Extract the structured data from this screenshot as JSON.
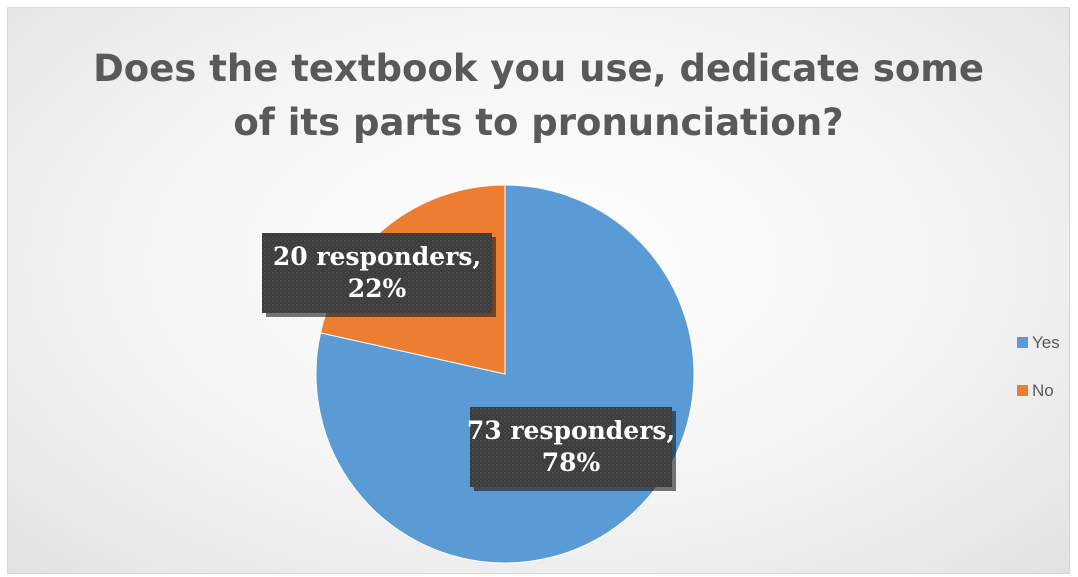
{
  "chart_data": {
    "type": "pie",
    "title": "Does the textbook you use, dedicate some of its parts to pronunciation?",
    "title_lines": [
      "Does the textbook you use, dedicate some",
      "of its parts to pronunciation?"
    ],
    "categories": [
      "Yes",
      "No"
    ],
    "values": [
      73,
      20
    ],
    "percentages": [
      78,
      22
    ],
    "data_labels": [
      [
        "73 responders,",
        "78%"
      ],
      [
        "20 responders,",
        "22%"
      ]
    ],
    "colors": [
      "#5b9bd5",
      "#ed7d31"
    ],
    "label_background": "#404040",
    "legend": {
      "position": "right",
      "entries": [
        "Yes",
        "No"
      ]
    }
  }
}
